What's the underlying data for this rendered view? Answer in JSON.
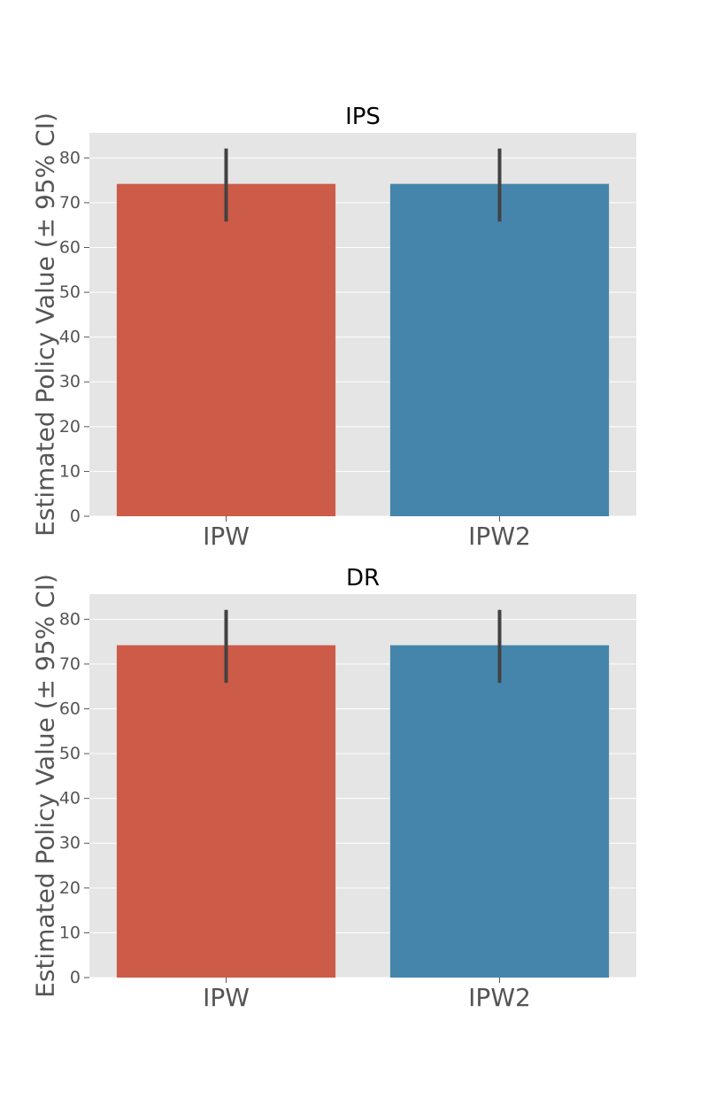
{
  "chart_data": [
    {
      "type": "bar",
      "title": "IPS",
      "ylabel": "Estimated Policy Value (± 95% CI)",
      "xlabel": "",
      "categories": [
        "IPW",
        "IPW2"
      ],
      "values": [
        74.2,
        74.2
      ],
      "ci_low": [
        65.8,
        65.8
      ],
      "ci_high": [
        82.1,
        82.1
      ],
      "colors": [
        "#cc5b48",
        "#4585ac"
      ],
      "ylim": [
        0,
        85.6
      ],
      "yticks": [
        0,
        10,
        20,
        30,
        40,
        50,
        60,
        70,
        80
      ],
      "grid": true,
      "legend": "none"
    },
    {
      "type": "bar",
      "title": "DR",
      "ylabel": "Estimated Policy Value (± 95% CI)",
      "xlabel": "",
      "categories": [
        "IPW",
        "IPW2"
      ],
      "values": [
        74.2,
        74.2
      ],
      "ci_low": [
        65.8,
        65.8
      ],
      "ci_high": [
        82.1,
        82.1
      ],
      "colors": [
        "#cc5b48",
        "#4585ac"
      ],
      "ylim": [
        0,
        85.6
      ],
      "yticks": [
        0,
        10,
        20,
        30,
        40,
        50,
        60,
        70,
        80
      ],
      "grid": true,
      "legend": "none"
    }
  ]
}
